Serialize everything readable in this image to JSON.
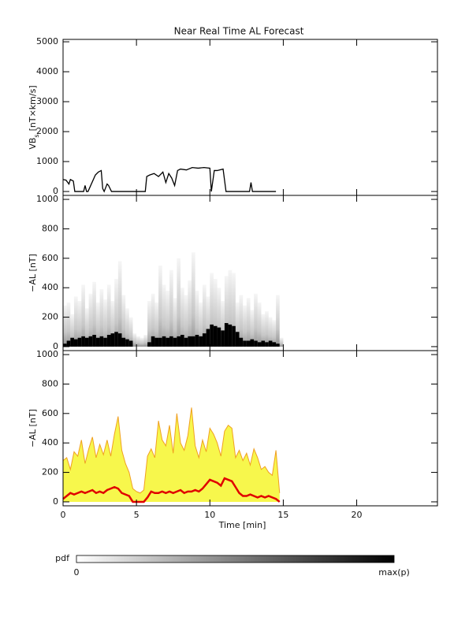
{
  "title": "Near Real Time AL Forecast",
  "colorbar": {
    "label": "pdf",
    "min_label": "0",
    "max_label": "max(p)"
  },
  "chart_data": [
    {
      "type": "line",
      "y_label": [
        "VB",
        "s",
        "[nT×km/s]"
      ],
      "color": "#000000",
      "xlim": [
        0,
        25.5
      ],
      "xticks": [
        0,
        5,
        10,
        15,
        20
      ],
      "ylim": [
        -130,
        5080
      ],
      "yticks": [
        0,
        1000,
        2000,
        3000,
        4000,
        5000
      ],
      "x": [
        0,
        0.2,
        0.4,
        0.5,
        0.7,
        0.8,
        1.4,
        1.5,
        1.6,
        1.7,
        2.2,
        2.4,
        2.6,
        2.7,
        2.8,
        3.0,
        3.1,
        3.3,
        5.6,
        5.7,
        5.9,
        6.2,
        6.5,
        6.8,
        7.0,
        7.2,
        7.4,
        7.6,
        7.8,
        8.0,
        8.4,
        8.8,
        9.2,
        9.6,
        10.0,
        10.1,
        10.3,
        10.5,
        10.9,
        11.1,
        11.3,
        12.7,
        12.8,
        12.9,
        14.5
      ],
      "values": [
        400,
        380,
        250,
        400,
        350,
        0,
        0,
        200,
        0,
        0,
        550,
        650,
        700,
        100,
        0,
        250,
        200,
        0,
        0,
        500,
        550,
        600,
        500,
        650,
        300,
        600,
        450,
        200,
        700,
        750,
        720,
        800,
        780,
        800,
        780,
        0,
        700,
        700,
        750,
        0,
        0,
        0,
        300,
        0,
        0
      ]
    },
    {
      "type": "heatmap",
      "y_label": "−AL [nT]",
      "bin_width": 0.25,
      "xlim": [
        0,
        25.5
      ],
      "xticks": [
        0,
        5,
        10,
        15,
        20
      ],
      "ylim": [
        -27,
        1027
      ],
      "yticks": [
        0,
        200,
        400,
        600,
        800,
        1000
      ],
      "x": [
        0,
        0.25,
        0.5,
        0.75,
        1,
        1.25,
        1.5,
        1.75,
        2,
        2.25,
        2.5,
        2.75,
        3,
        3.25,
        3.5,
        3.75,
        4,
        4.25,
        4.5,
        4.75,
        5,
        5.25,
        5.5,
        5.75,
        6,
        6.25,
        6.5,
        6.75,
        7,
        7.25,
        7.5,
        7.75,
        8,
        8.25,
        8.5,
        8.75,
        9,
        9.25,
        9.5,
        9.75,
        10,
        10.25,
        10.5,
        10.75,
        11,
        11.25,
        11.5,
        11.75,
        12,
        12.25,
        12.5,
        12.75,
        13,
        13.25,
        13.5,
        13.75,
        14,
        14.25,
        14.5,
        14.75
      ],
      "values": [
        280,
        300,
        220,
        340,
        310,
        420,
        260,
        360,
        440,
        300,
        390,
        320,
        420,
        310,
        460,
        580,
        350,
        260,
        200,
        90,
        70,
        60,
        80,
        310,
        360,
        300,
        550,
        420,
        380,
        520,
        330,
        600,
        400,
        350,
        450,
        640,
        380,
        300,
        420,
        340,
        500,
        460,
        400,
        310,
        480,
        520,
        500,
        300,
        350,
        280,
        330,
        250,
        360,
        300,
        220,
        240,
        200,
        180,
        350,
        60
      ],
      "median": [
        20,
        40,
        60,
        50,
        60,
        70,
        60,
        70,
        80,
        60,
        70,
        60,
        80,
        90,
        100,
        90,
        60,
        50,
        40,
        0,
        0,
        0,
        0,
        30,
        70,
        60,
        60,
        70,
        60,
        70,
        60,
        70,
        80,
        60,
        70,
        70,
        80,
        70,
        90,
        120,
        150,
        140,
        130,
        110,
        160,
        150,
        140,
        100,
        60,
        40,
        40,
        50,
        40,
        30,
        40,
        30,
        40,
        30,
        20,
        0
      ]
    },
    {
      "type": "ensemble",
      "y_label": "−AL [nT]",
      "x_label": "Time [min]",
      "xlim": [
        0,
        25.5
      ],
      "xticks": [
        0,
        5,
        10,
        15,
        20
      ],
      "ylim": [
        -27,
        1027
      ],
      "yticks": [
        0,
        200,
        400,
        600,
        800,
        1000
      ],
      "x": [
        0,
        0.25,
        0.5,
        0.75,
        1,
        1.25,
        1.5,
        1.75,
        2,
        2.25,
        2.5,
        2.75,
        3,
        3.25,
        3.5,
        3.75,
        4,
        4.25,
        4.5,
        4.75,
        5,
        5.25,
        5.5,
        5.75,
        6,
        6.25,
        6.5,
        6.75,
        7,
        7.25,
        7.5,
        7.75,
        8,
        8.25,
        8.5,
        8.75,
        9,
        9.25,
        9.5,
        9.75,
        10,
        10.25,
        10.5,
        10.75,
        11,
        11.25,
        11.5,
        11.75,
        12,
        12.25,
        12.5,
        12.75,
        13,
        13.25,
        13.5,
        13.75,
        14,
        14.25,
        14.5,
        14.75
      ],
      "series": [
        {
          "color": "#f0a020",
          "fill": "#f4f400",
          "values": [
            280,
            300,
            220,
            340,
            310,
            420,
            260,
            360,
            440,
            300,
            390,
            320,
            420,
            310,
            460,
            580,
            350,
            260,
            200,
            90,
            70,
            60,
            80,
            310,
            360,
            300,
            550,
            420,
            380,
            520,
            330,
            600,
            400,
            350,
            450,
            640,
            380,
            300,
            420,
            340,
            500,
            460,
            400,
            310,
            480,
            520,
            500,
            300,
            350,
            280,
            330,
            250,
            360,
            300,
            220,
            240,
            200,
            180,
            350,
            60
          ]
        },
        {
          "color": "#e00000",
          "values": [
            20,
            40,
            60,
            50,
            60,
            70,
            60,
            70,
            80,
            60,
            70,
            60,
            80,
            90,
            100,
            90,
            60,
            50,
            40,
            0,
            0,
            0,
            0,
            30,
            70,
            60,
            60,
            70,
            60,
            70,
            60,
            70,
            80,
            60,
            70,
            70,
            80,
            70,
            90,
            120,
            150,
            140,
            130,
            110,
            160,
            150,
            140,
            100,
            60,
            40,
            40,
            50,
            40,
            30,
            40,
            30,
            40,
            30,
            20,
            0
          ]
        }
      ]
    }
  ]
}
